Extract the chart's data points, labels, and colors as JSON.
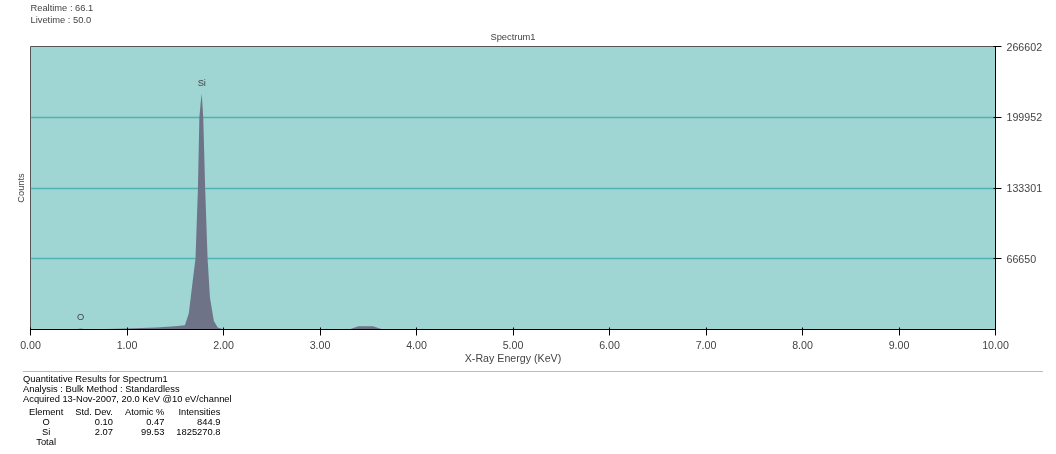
{
  "chart_data": {
    "type": "area",
    "title": "Spectrum1",
    "xlabel": "X-Ray Energy (KeV)",
    "ylabel": "Counts",
    "x": [
      0,
      0.45,
      0.52,
      0.58,
      1.0,
      1.3,
      1.5,
      1.6,
      1.64,
      1.68,
      1.71,
      1.735,
      1.75,
      1.765,
      1.775,
      1.79,
      1.81,
      1.835,
      1.86,
      1.9,
      1.94,
      2.0,
      3.3,
      3.4,
      3.47,
      3.55,
      3.65,
      10
    ],
    "series": [
      {
        "color": "#6f7388",
        "values": [
          0,
          0,
          1000,
          0,
          1000,
          2000,
          3000,
          4000,
          15000,
          45000,
          67000,
          133000,
          200000,
          215000,
          222000,
          200000,
          133000,
          67000,
          30000,
          8000,
          2000,
          0,
          0,
          3000,
          3000,
          3000,
          0,
          0
        ]
      }
    ],
    "xlim": [
      0,
      10
    ],
    "ylim": [
      0,
      266602
    ],
    "xticks": [
      {
        "value": 0,
        "label": "0.00"
      },
      {
        "value": 1,
        "label": "1.00"
      },
      {
        "value": 2,
        "label": "2.00"
      },
      {
        "value": 3,
        "label": "3.00"
      },
      {
        "value": 4,
        "label": "4.00"
      },
      {
        "value": 5,
        "label": "5.00"
      },
      {
        "value": 6,
        "label": "6.00"
      },
      {
        "value": 7,
        "label": "7.00"
      },
      {
        "value": 8,
        "label": "8.00"
      },
      {
        "value": 9,
        "label": "9.00"
      },
      {
        "value": 10,
        "label": "10.00"
      }
    ],
    "yticks": [
      {
        "value": 66650,
        "label": "66650"
      },
      {
        "value": 133301,
        "label": "133301"
      },
      {
        "value": 199952,
        "label": "199952"
      },
      {
        "value": 266602,
        "label": "266602"
      }
    ],
    "grid": "y",
    "annotations": [
      "Realtime : 66.1",
      "Livetime : 50.0",
      {
        "text": "Si",
        "x": 1.775,
        "y": 222000
      },
      {
        "text": "O",
        "x": 0.52,
        "y": 1000
      },
      "Quantitative Results for Spectrum1",
      "Analysis : Bulk     Method : Standardless",
      "Acquired 13-Nov-2007, 20.0 KeV @10 eV/channel",
      "Element\tStd. Dev.\tAtomic %\tIntensities",
      "O\t0.10\t0.47\t844.9",
      "Si\t2.07\t99.53\t1825270.8",
      "Total"
    ]
  }
}
